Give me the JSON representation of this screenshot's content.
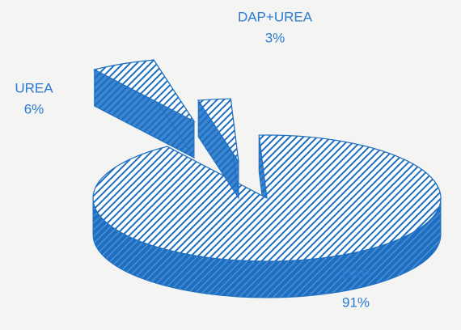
{
  "chart_data": {
    "type": "pie",
    "categories": [
      "UREA",
      "DAP+UREA",
      "DAP"
    ],
    "values": [
      6,
      3,
      91
    ],
    "value_labels": [
      "6%",
      "3%",
      "91%"
    ],
    "color": "#1f6fc1",
    "three_d": true
  }
}
